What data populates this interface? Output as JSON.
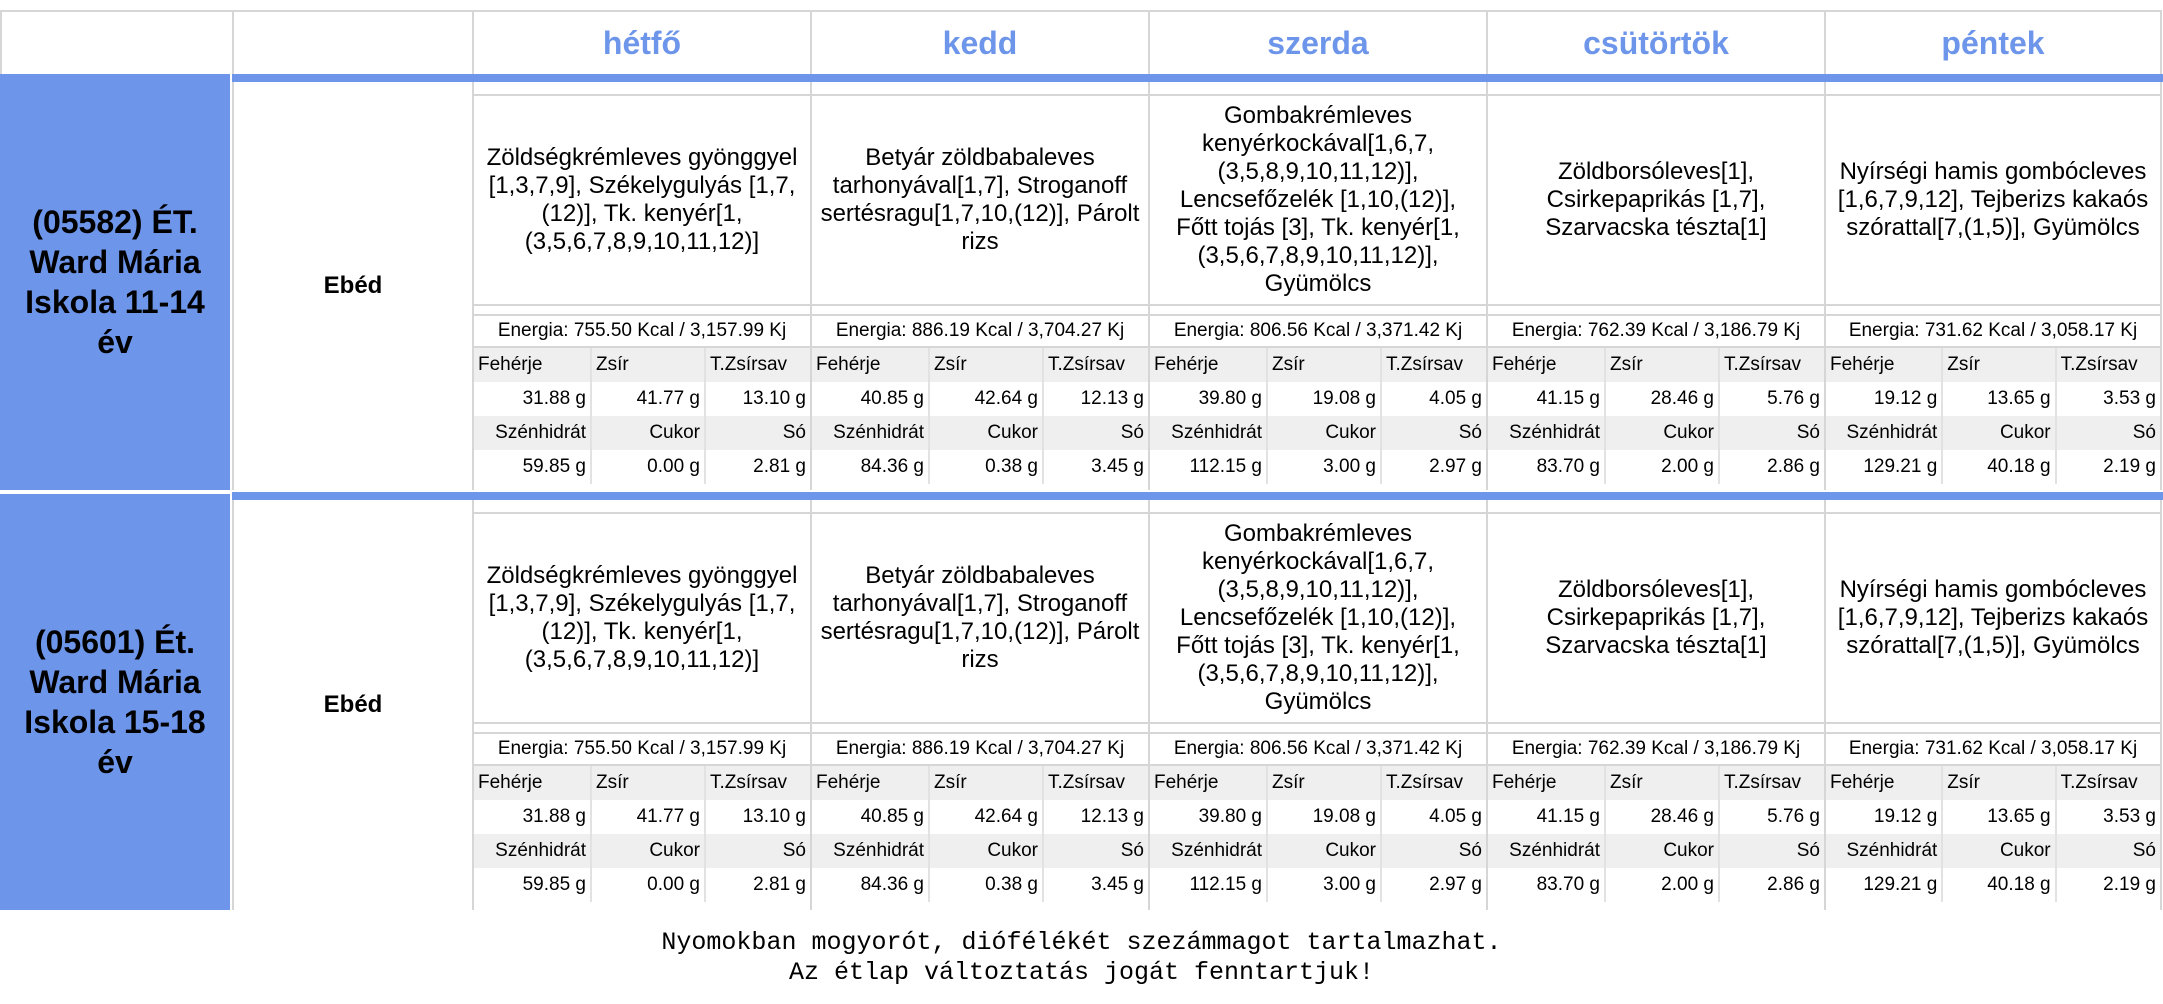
{
  "days": [
    "hétfő",
    "kedd",
    "szerda",
    "csütörtök",
    "péntek"
  ],
  "nutrient_labels": {
    "protein": "Fehérje",
    "fat": "Zsír",
    "sat_fat": "T.Zsírsav",
    "carb": "Szénhidrát",
    "sugar": "Cukor",
    "salt": "Só"
  },
  "groups": [
    {
      "name": "(05582) ÉT. Ward Mária Iskola 11-14 év",
      "meal_type": "Ebéd",
      "days": [
        {
          "menu": "Zöldségkrémleves gyönggyel [1,3,7,9], Székelygulyás [1,7,(12)], Tk. kenyér[1,(3,5,6,7,8,9,10,11,12)]",
          "energy": "Energia: 755.50 Kcal / 3,157.99 Kj",
          "protein": "31.88 g",
          "fat": "41.77 g",
          "sat_fat": "13.10 g",
          "carb": "59.85 g",
          "sugar": "0.00 g",
          "salt": "2.81 g"
        },
        {
          "menu": "Betyár zöldbabaleves tarhonyával[1,7], Stroganoff sertésragu[1,7,10,(12)], Párolt rizs",
          "energy": "Energia: 886.19 Kcal / 3,704.27 Kj",
          "protein": "40.85 g",
          "fat": "42.64 g",
          "sat_fat": "12.13 g",
          "carb": "84.36 g",
          "sugar": "0.38 g",
          "salt": "3.45 g"
        },
        {
          "menu": "Gombakrémleves kenyérkockával[1,6,7,(3,5,8,9,10,11,12)], Lencsefőzelék [1,10,(12)], Főtt tojás [3], Tk. kenyér[1,(3,5,6,7,8,9,10,11,12)], Gyümölcs",
          "energy": "Energia: 806.56 Kcal / 3,371.42 Kj",
          "protein": "39.80 g",
          "fat": "19.08 g",
          "sat_fat": "4.05 g",
          "carb": "112.15 g",
          "sugar": "3.00 g",
          "salt": "2.97 g"
        },
        {
          "menu": "Zöldborsóleves[1], Csirkepaprikás [1,7], Szarvacska tészta[1]",
          "energy": "Energia: 762.39 Kcal / 3,186.79 Kj",
          "protein": "41.15 g",
          "fat": "28.46 g",
          "sat_fat": "5.76 g",
          "carb": "83.70 g",
          "sugar": "2.00 g",
          "salt": "2.86 g"
        },
        {
          "menu": "Nyírségi hamis gombócleves [1,6,7,9,12], Tejberizs kakaós szórattal[7,(1,5)], Gyümölcs",
          "energy": "Energia: 731.62 Kcal / 3,058.17 Kj",
          "protein": "19.12 g",
          "fat": "13.65 g",
          "sat_fat": "3.53 g",
          "carb": "129.21 g",
          "sugar": "40.18 g",
          "salt": "2.19 g"
        }
      ]
    },
    {
      "name": "(05601) Ét. Ward Mária Iskola 15-18 év",
      "meal_type": "Ebéd",
      "days": [
        {
          "menu": "Zöldségkrémleves gyönggyel [1,3,7,9], Székelygulyás [1,7,(12)], Tk. kenyér[1,(3,5,6,7,8,9,10,11,12)]",
          "energy": "Energia: 755.50 Kcal / 3,157.99 Kj",
          "protein": "31.88 g",
          "fat": "41.77 g",
          "sat_fat": "13.10 g",
          "carb": "59.85 g",
          "sugar": "0.00 g",
          "salt": "2.81 g"
        },
        {
          "menu": "Betyár zöldbabaleves tarhonyával[1,7], Stroganoff sertésragu[1,7,10,(12)], Párolt rizs",
          "energy": "Energia: 886.19 Kcal / 3,704.27 Kj",
          "protein": "40.85 g",
          "fat": "42.64 g",
          "sat_fat": "12.13 g",
          "carb": "84.36 g",
          "sugar": "0.38 g",
          "salt": "3.45 g"
        },
        {
          "menu": "Gombakrémleves kenyérkockával[1,6,7,(3,5,8,9,10,11,12)], Lencsefőzelék [1,10,(12)], Főtt tojás [3], Tk. kenyér[1,(3,5,6,7,8,9,10,11,12)], Gyümölcs",
          "energy": "Energia: 806.56 Kcal / 3,371.42 Kj",
          "protein": "39.80 g",
          "fat": "19.08 g",
          "sat_fat": "4.05 g",
          "carb": "112.15 g",
          "sugar": "3.00 g",
          "salt": "2.97 g"
        },
        {
          "menu": "Zöldborsóleves[1], Csirkepaprikás [1,7], Szarvacska tészta[1]",
          "energy": "Energia: 762.39 Kcal / 3,186.79 Kj",
          "protein": "41.15 g",
          "fat": "28.46 g",
          "sat_fat": "5.76 g",
          "carb": "83.70 g",
          "sugar": "2.00 g",
          "salt": "2.86 g"
        },
        {
          "menu": "Nyírségi hamis gombócleves [1,6,7,9,12], Tejberizs kakaós szórattal[7,(1,5)], Gyümölcs",
          "energy": "Energia: 731.62 Kcal / 3,058.17 Kj",
          "protein": "19.12 g",
          "fat": "13.65 g",
          "sat_fat": "3.53 g",
          "carb": "129.21 g",
          "sugar": "40.18 g",
          "salt": "2.19 g"
        }
      ]
    }
  ],
  "footer": {
    "line1": "Nyomokban mogyorót, diófélékét szezámmagot tartalmazhat.",
    "line2": "Az étlap változtatás jogát fenntartjuk!"
  }
}
